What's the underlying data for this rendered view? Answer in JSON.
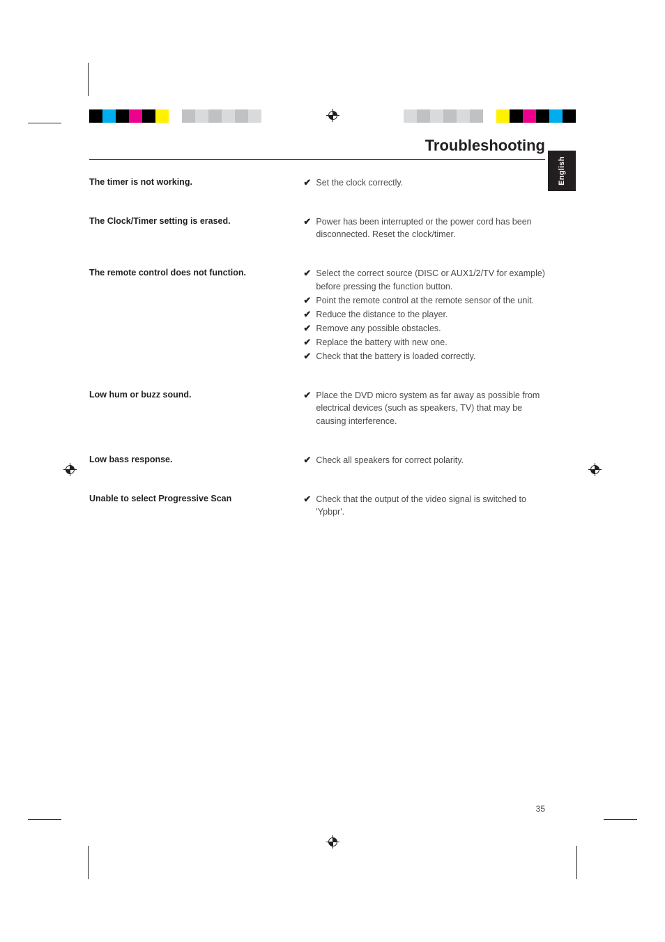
{
  "meta": {
    "title": "Troubleshooting",
    "language_tab": "English",
    "page_number": "35"
  },
  "colors": {
    "text_heading": "#231f20",
    "text_body": "#4a4a4a",
    "rule": "#231f20",
    "tab_bg": "#231f20",
    "tab_fg": "#ffffff",
    "reg_black": "#000000",
    "reg_cyan": "#00aeef",
    "reg_magenta": "#ec008c",
    "reg_yellow": "#fff200",
    "reg_gray": "#bfc1c3",
    "reg_lightgray": "#d9dadb",
    "bg": "#ffffff"
  },
  "typography": {
    "title_fontsize_pt": 17,
    "body_fontsize_pt": 9.5,
    "problem_weight": "bold",
    "font_family": "Gill Sans"
  },
  "rows": [
    {
      "problem": "The timer is not working.",
      "solutions": [
        "Set the clock correctly."
      ]
    },
    {
      "problem": "The Clock/Timer setting is erased.",
      "solutions": [
        "Power has been interrupted or the power cord has been disconnected. Reset the clock/timer."
      ]
    },
    {
      "problem": "The remote control does not function.",
      "solutions": [
        "Select the correct source (DISC or AUX1/2/TV for example) before pressing the function button.",
        "Point the remote control at the remote sensor of the unit.",
        "Reduce the distance to the player.",
        "Remove any possible obstacles.",
        "Replace the battery with new one.",
        "Check that the battery is loaded correctly."
      ]
    },
    {
      "problem": "Low hum or buzz sound.",
      "solutions": [
        "Place the DVD micro system as far away as possible from electrical devices (such as speakers, TV) that may be causing interference."
      ]
    },
    {
      "problem": "Low bass response.",
      "solutions": [
        "Check all speakers for correct polarity."
      ]
    },
    {
      "problem": "Unable to select Progressive Scan",
      "solutions": [
        "Check that the output of the video signal is switched to  'Ypbpr'."
      ]
    }
  ]
}
